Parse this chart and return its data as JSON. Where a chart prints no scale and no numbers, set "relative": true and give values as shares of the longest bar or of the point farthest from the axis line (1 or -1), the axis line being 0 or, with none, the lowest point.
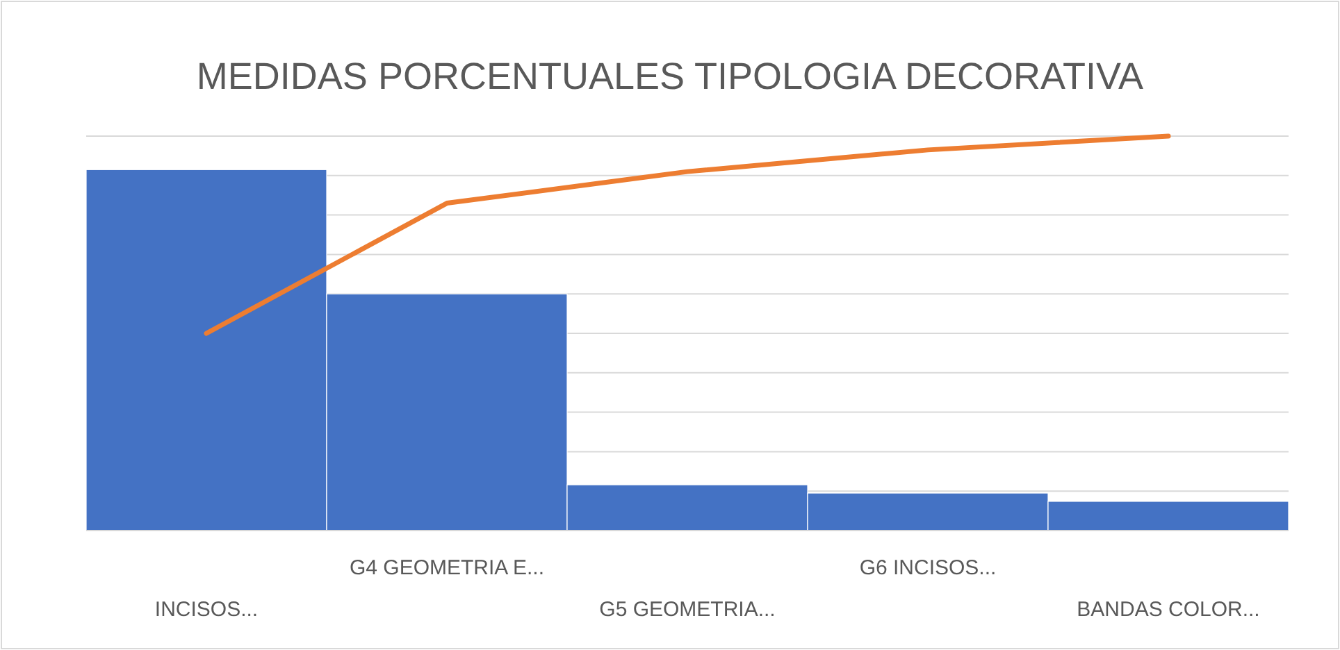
{
  "chart_data": {
    "type": "bar",
    "title": "MEDIDAS PORCENTUALES TIPOLOGIA DECORATIVA",
    "relative": true,
    "grid": "y",
    "categories": [
      "INCISOS...",
      "G4 GEOMETRIA E...",
      "G5 GEOMETRIA...",
      "G6 INCISOS...",
      "BANDAS COLOR..."
    ],
    "series": [
      {
        "color": "#4472c4",
        "values": [
          0.915,
          0.6,
          0.116,
          0.095,
          0.074
        ]
      },
      {
        "type": "line",
        "color": "#ed7d31",
        "values": [
          0.5,
          0.83,
          0.91,
          0.965,
          1
        ]
      }
    ]
  }
}
